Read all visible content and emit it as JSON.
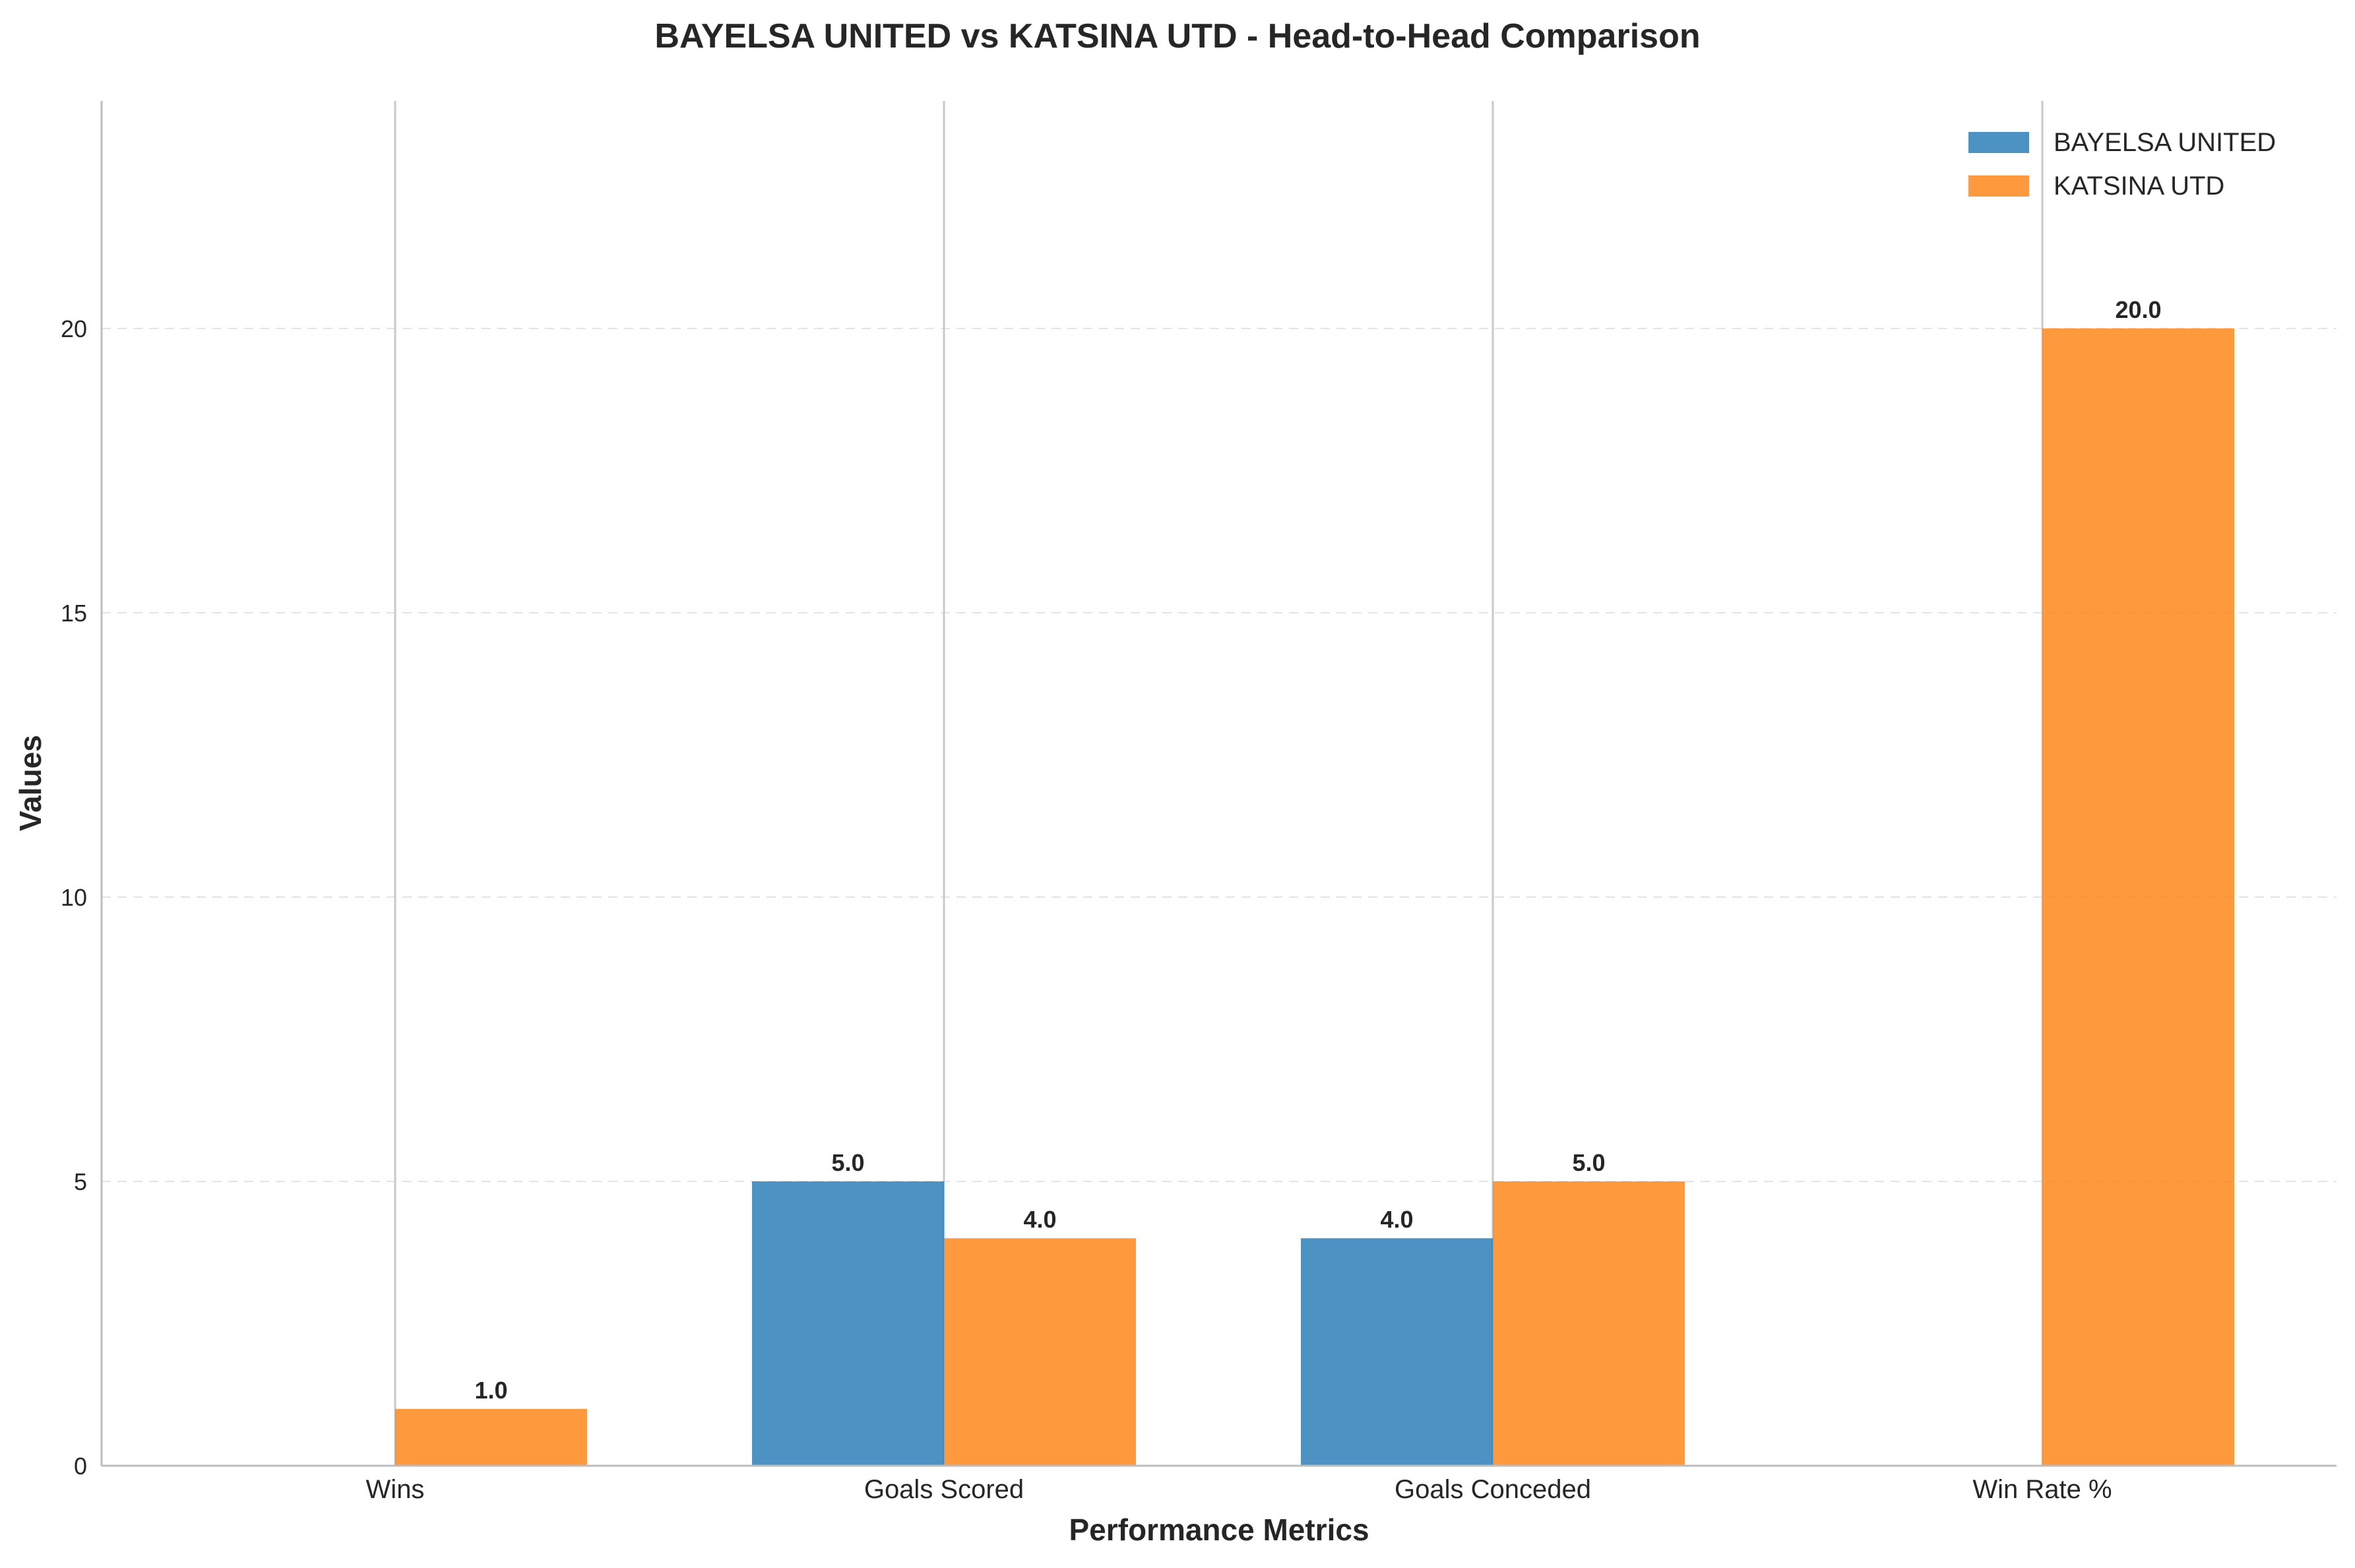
{
  "chart_data": {
    "type": "bar",
    "title": "BAYELSA UNITED vs KATSINA UTD - Head-to-Head Comparison",
    "xlabel": "Performance Metrics",
    "ylabel": "Values",
    "categories": [
      "Wins",
      "Goals Scored",
      "Goals Conceded",
      "Win Rate %"
    ],
    "series": [
      {
        "name": "BAYELSA UNITED",
        "color": "#1f77b4",
        "values": [
          0,
          5,
          4,
          0
        ],
        "labels": [
          "",
          "5.0",
          "4.0",
          ""
        ]
      },
      {
        "name": "KATSINA UTD",
        "color": "#ff7f0e",
        "values": [
          1,
          4,
          5,
          20
        ],
        "labels": [
          "1.0",
          "4.0",
          "5.0",
          "20.0"
        ]
      }
    ],
    "ylim": [
      0,
      24
    ],
    "yticks": [
      0,
      5,
      10,
      15,
      20
    ],
    "grid": {
      "horizontal": "dashed",
      "vertical_at_categories": true
    },
    "legend_position": "top-right"
  }
}
